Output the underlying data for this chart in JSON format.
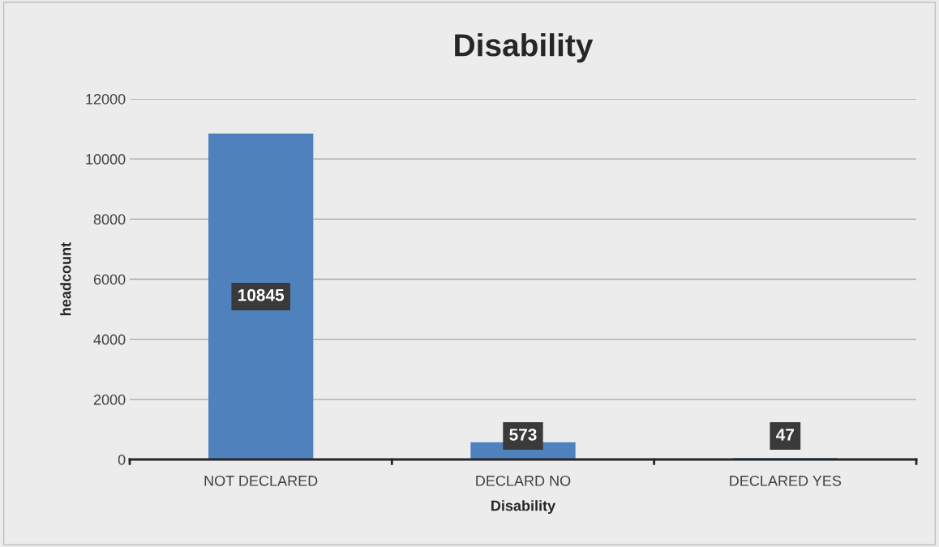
{
  "chart_data": {
    "type": "bar",
    "title": "Disability",
    "xlabel": "Disability",
    "ylabel": "headcount",
    "categories": [
      "NOT DECLARED",
      "DECLARD NO",
      "DECLARED YES"
    ],
    "values": [
      10845,
      573,
      47
    ],
    "color": "#4f81bd",
    "ylim": [
      0,
      12000
    ],
    "yticks": [
      0,
      2000,
      4000,
      6000,
      8000,
      10000,
      12000
    ],
    "grid": "y",
    "data_labels": true,
    "legend": false
  }
}
